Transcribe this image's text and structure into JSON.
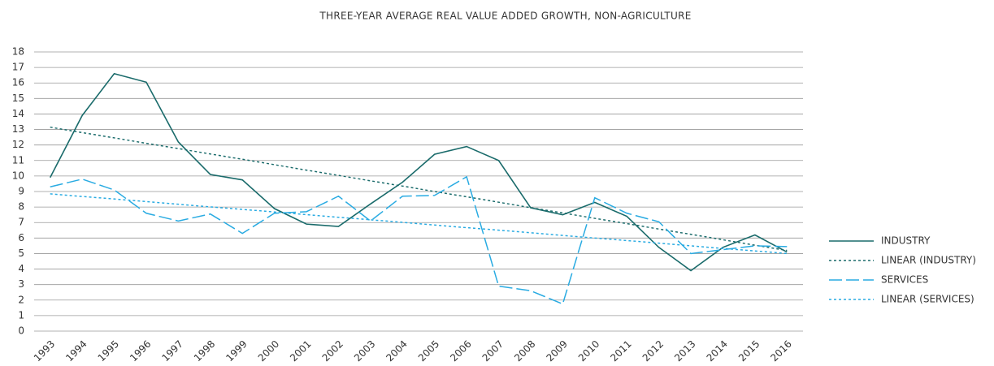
{
  "chart_data": {
    "type": "line",
    "title": "THREE-YEAR AVERAGE REAL VALUE ADDED GROWTH, NON-AGRICULTURE",
    "categories": [
      "1993",
      "1994",
      "1995",
      "1996",
      "1997",
      "1998",
      "1999",
      "2000",
      "2001",
      "2002",
      "2003",
      "2004",
      "2005",
      "2006",
      "2007",
      "2008",
      "2009",
      "2010",
      "2011",
      "2012",
      "2013",
      "2014",
      "2015",
      "2016"
    ],
    "ylim": [
      0,
      18
    ],
    "yticks": [
      0,
      1,
      2,
      3,
      4,
      5,
      6,
      7,
      8,
      9,
      10,
      11,
      12,
      13,
      14,
      15,
      16,
      17,
      18
    ],
    "grid": true,
    "legend": "right",
    "series": [
      {
        "name": "INDUSTRY",
        "color": "#1a6b6b",
        "dash": "solid",
        "values": [
          9.9,
          13.9,
          16.6,
          16.05,
          12.2,
          10.1,
          9.75,
          7.9,
          6.9,
          6.75,
          8.2,
          9.6,
          11.4,
          11.9,
          11.0,
          7.95,
          7.5,
          8.3,
          7.4,
          5.4,
          3.9,
          5.4,
          6.2,
          5.1
        ]
      },
      {
        "name": "LINEAR (INDUSTRY)",
        "color": "#1a6b6b",
        "dash": "dotted",
        "values": [
          13.15,
          12.8,
          12.46,
          12.11,
          11.77,
          11.42,
          11.08,
          10.73,
          10.38,
          10.04,
          9.69,
          9.35,
          9.0,
          8.66,
          8.31,
          7.96,
          7.62,
          7.27,
          6.93,
          6.58,
          6.24,
          5.89,
          5.54,
          5.2
        ]
      },
      {
        "name": "SERVICES",
        "color": "#29abe2",
        "dash": "dashed",
        "values": [
          9.3,
          9.8,
          9.1,
          7.6,
          7.1,
          7.55,
          6.3,
          7.6,
          7.7,
          8.7,
          7.1,
          8.7,
          8.75,
          9.95,
          2.9,
          2.6,
          1.75,
          8.6,
          7.6,
          7.05,
          5.0,
          5.25,
          5.5,
          5.45
        ]
      },
      {
        "name": "LINEAR (SERVICES)",
        "color": "#29abe2",
        "dash": "dotted",
        "values": [
          8.85,
          8.68,
          8.52,
          8.35,
          8.18,
          8.01,
          7.85,
          7.68,
          7.51,
          7.34,
          7.18,
          7.01,
          6.84,
          6.67,
          6.51,
          6.34,
          6.17,
          6.0,
          5.84,
          5.67,
          5.5,
          5.33,
          5.17,
          5.0
        ]
      }
    ]
  }
}
